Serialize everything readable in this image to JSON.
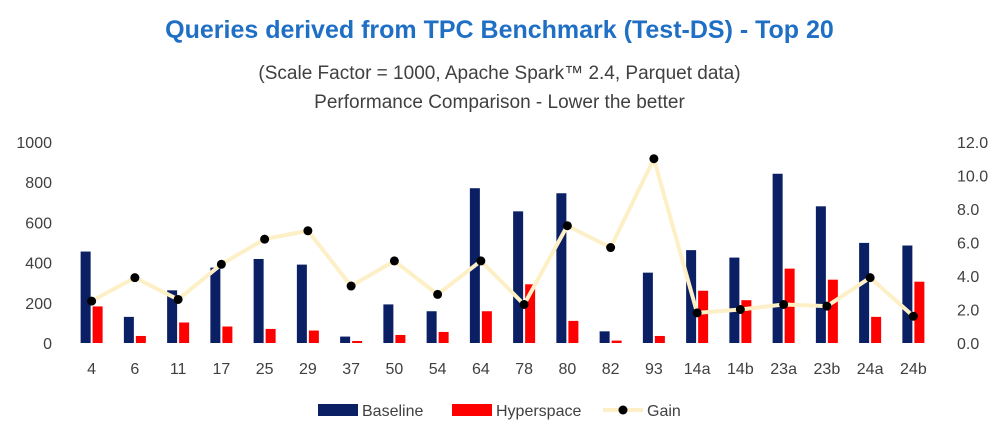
{
  "chart_data": {
    "type": "bar",
    "title": "Queries derived from TPC Benchmark (Test-DS) - Top 20",
    "subtitle": "(Scale Factor = 1000, Apache Spark™ 2.4, Parquet data)",
    "subtitle2": "Performance Comparison - Lower the better",
    "categories": [
      "4",
      "6",
      "11",
      "17",
      "25",
      "29",
      "37",
      "50",
      "54",
      "64",
      "78",
      "80",
      "82",
      "93",
      "14a",
      "14b",
      "23a",
      "23b",
      "24a",
      "24b"
    ],
    "series": [
      {
        "name": "Baseline",
        "kind": "bar",
        "axis": "left",
        "color": "#0b1f65",
        "values": [
          455,
          130,
          262,
          375,
          418,
          390,
          32,
          192,
          158,
          770,
          655,
          745,
          58,
          350,
          462,
          425,
          842,
          680,
          498,
          485
        ]
      },
      {
        "name": "Hyperspace",
        "kind": "bar",
        "axis": "left",
        "color": "#ff0000",
        "values": [
          182,
          35,
          102,
          82,
          70,
          62,
          10,
          40,
          55,
          158,
          292,
          110,
          12,
          35,
          260,
          213,
          370,
          315,
          130,
          305
        ]
      },
      {
        "name": "Gain",
        "kind": "line",
        "axis": "right",
        "color": "#fdf0c6",
        "values": [
          2.5,
          3.9,
          2.6,
          4.7,
          6.2,
          6.7,
          3.4,
          4.9,
          2.9,
          4.9,
          2.3,
          7.0,
          5.7,
          11.0,
          1.8,
          2.0,
          2.3,
          2.2,
          3.9,
          1.6
        ]
      }
    ],
    "ylim": [
      0,
      1000
    ],
    "yticks": [
      "0",
      "200",
      "400",
      "600",
      "800",
      "1000"
    ],
    "y2lim": [
      0,
      12
    ],
    "y2ticks": [
      "0.0",
      "2.0",
      "4.0",
      "6.0",
      "8.0",
      "10.0",
      "12.0"
    ],
    "legend": "bottom",
    "grid": false
  }
}
